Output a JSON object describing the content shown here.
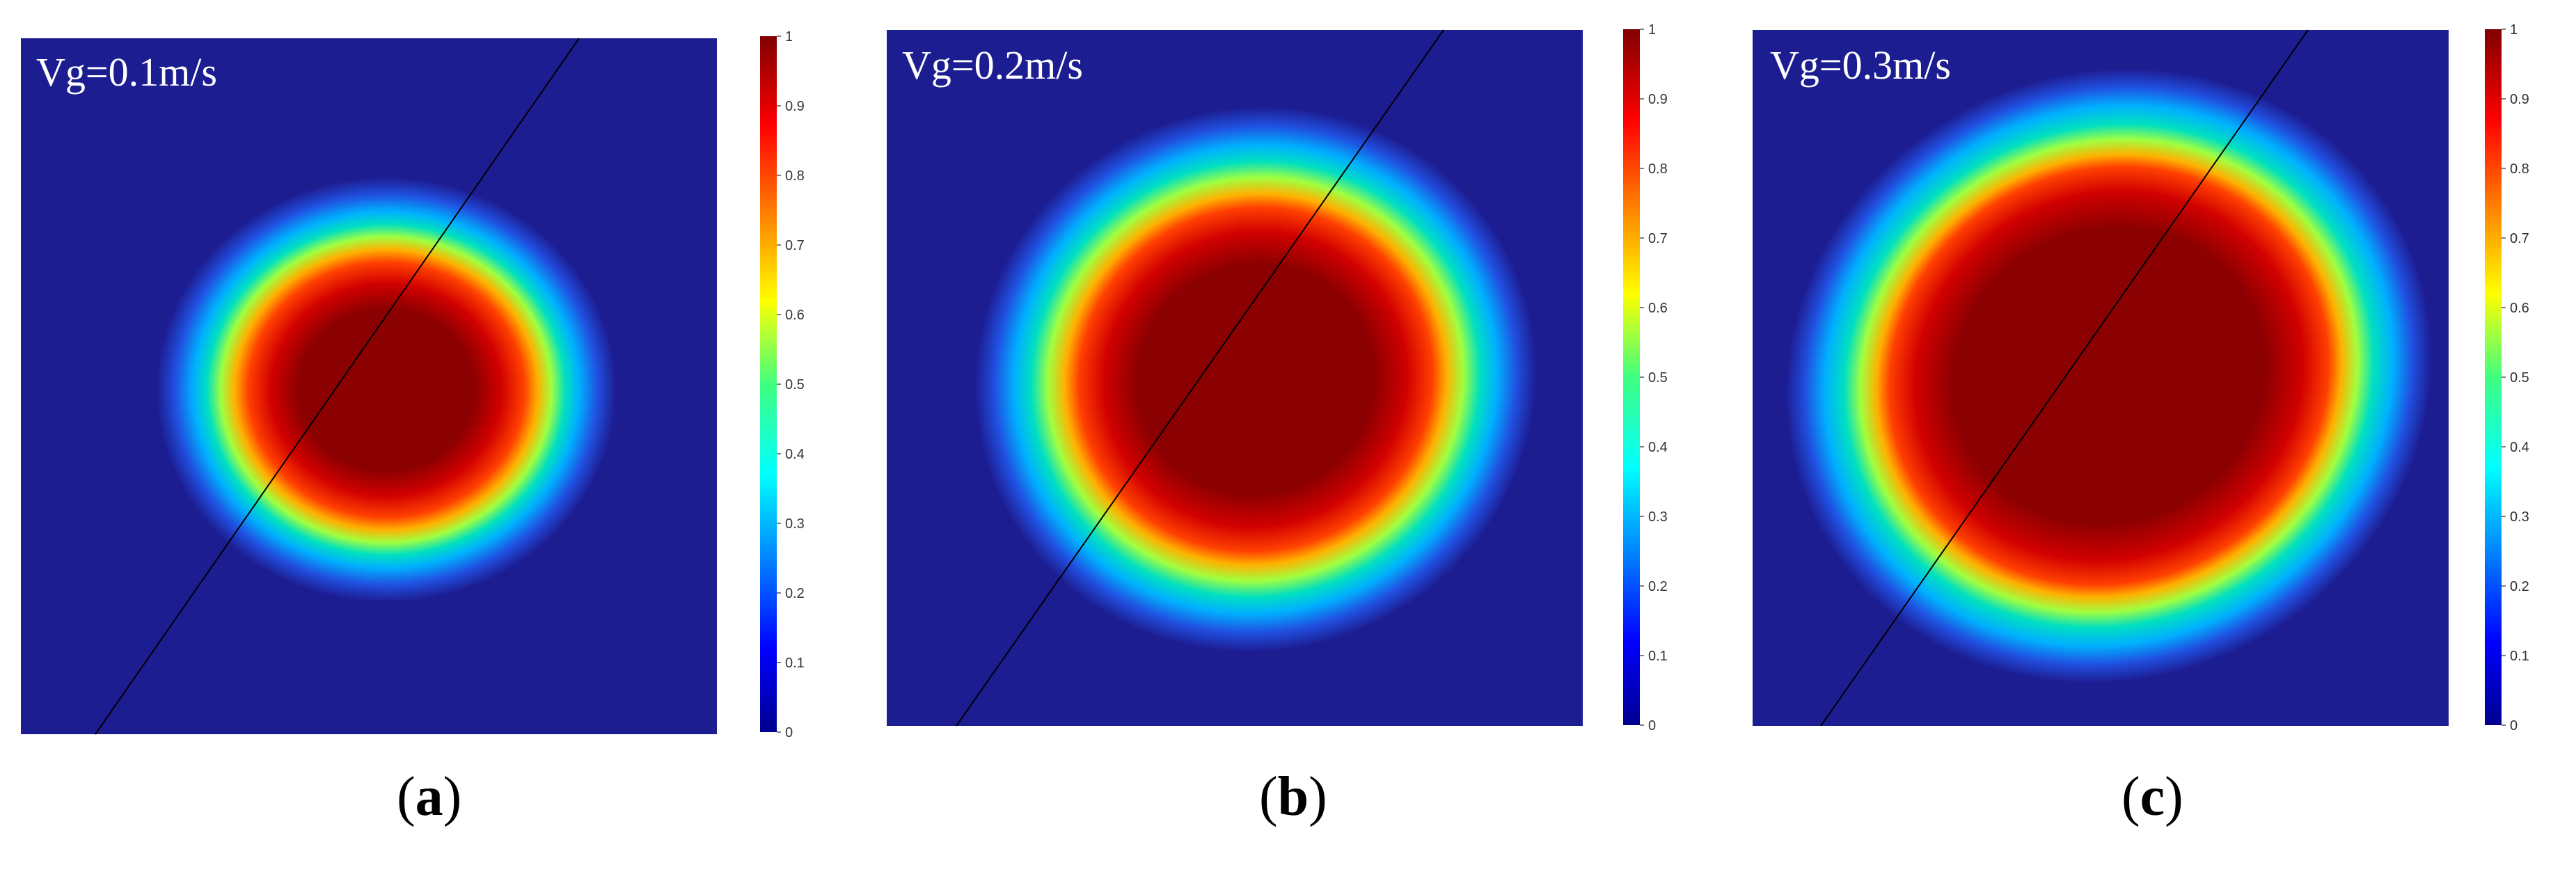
{
  "chart_data": [
    {
      "type": "heatmap",
      "panel_caption": "a",
      "label": "Vg=0.1m/s",
      "colorbar": {
        "min": 0,
        "max": 1,
        "ticks": [
          "0",
          "0.1",
          "0.2",
          "0.3",
          "0.4",
          "0.5",
          "0.6",
          "0.7",
          "0.8",
          "0.9",
          "1"
        ],
        "colormap": "jet"
      },
      "field": "circular concentration blob, peak value 1 at center, decaying to 0 at edge",
      "features": [
        "diagonal black line"
      ]
    },
    {
      "type": "heatmap",
      "panel_caption": "b",
      "label": "Vg=0.2m/s",
      "colorbar": {
        "min": 0,
        "max": 1,
        "ticks": [
          "0",
          "0.1",
          "0.2",
          "0.3",
          "0.4",
          "0.5",
          "0.6",
          "0.7",
          "0.8",
          "0.9",
          "1"
        ],
        "colormap": "jet"
      },
      "field": "larger elliptical concentration blob, peak value 1 at center, decaying to 0 at edge",
      "features": [
        "diagonal black line"
      ]
    },
    {
      "type": "heatmap",
      "panel_caption": "c",
      "label": "Vg=0.3m/s",
      "colorbar": {
        "min": 0,
        "max": 1,
        "ticks": [
          "0",
          "0.1",
          "0.2",
          "0.3",
          "0.4",
          "0.5",
          "0.6",
          "0.7",
          "0.8",
          "0.9",
          "1"
        ],
        "colormap": "jet"
      },
      "field": "largest elliptical concentration blob, peak value 1 at center, decaying to 0 at edge",
      "features": [
        "diagonal black line"
      ]
    }
  ],
  "colors": {
    "background_field": "#1d1d92",
    "core": "#8b0000",
    "line": "#000000"
  }
}
